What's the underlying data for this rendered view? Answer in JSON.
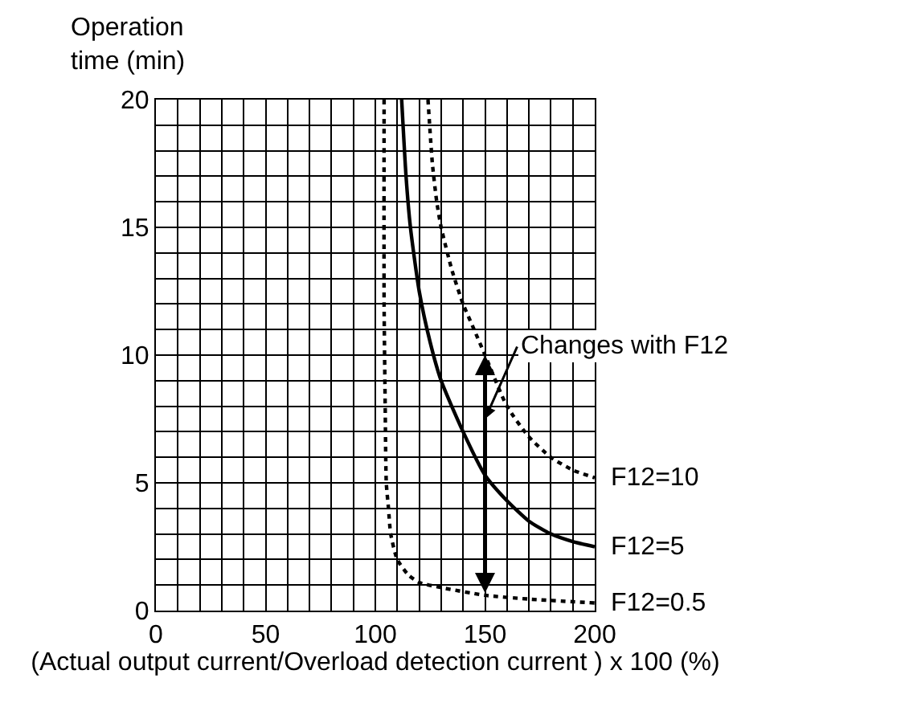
{
  "chart_data": {
    "type": "line",
    "xlabel": "(Actual output current/Overload detection current ) x 100 (%)",
    "ylabel": "Operation\ntime (min)",
    "series": [
      {
        "name": "F12=10",
        "color": "#000000",
        "line_style": "dotted",
        "x": [
          124,
          126,
          128,
          130,
          135,
          140,
          145,
          150,
          160,
          170,
          180,
          190,
          200
        ],
        "values": [
          20,
          17.5,
          16,
          15,
          13.3,
          12,
          11,
          10,
          8,
          6.8,
          6,
          5.5,
          5.2
        ]
      },
      {
        "name": "F12=5",
        "color": "#000000",
        "line_style": "solid",
        "x": [
          112,
          114,
          116,
          120,
          125,
          130,
          140,
          150,
          160,
          170,
          180,
          190,
          200
        ],
        "values": [
          20,
          17,
          15,
          12.5,
          10.5,
          9,
          7,
          5.3,
          4.3,
          3.5,
          3,
          2.7,
          2.5
        ]
      },
      {
        "name": "F12=0.5",
        "color": "#000000",
        "line_style": "dotted",
        "x": [
          104,
          104,
          104.5,
          105,
          106,
          107,
          110,
          115,
          120,
          130,
          150,
          170,
          200
        ],
        "values": [
          20,
          12,
          8,
          5,
          4,
          3,
          2,
          1.4,
          1.1,
          0.9,
          0.6,
          0.45,
          0.3
        ]
      }
    ],
    "annotations": [
      "Changes with F12"
    ],
    "xlim": [
      0,
      200
    ],
    "xticks": [
      0,
      {
        "value": 10,
        "label": null
      },
      {
        "value": 20,
        "label": null
      },
      {
        "value": 30,
        "label": null
      },
      {
        "value": 40,
        "label": null
      },
      50,
      {
        "value": 60,
        "label": null
      },
      {
        "value": 70,
        "label": null
      },
      {
        "value": 80,
        "label": null
      },
      {
        "value": 90,
        "label": null
      },
      100,
      {
        "value": 110,
        "label": null
      },
      {
        "value": 120,
        "label": null
      },
      {
        "value": 130,
        "label": null
      },
      {
        "value": 140,
        "label": null
      },
      150,
      {
        "value": 160,
        "label": null
      },
      {
        "value": 170,
        "label": null
      },
      {
        "value": 180,
        "label": null
      },
      {
        "value": 190,
        "label": null
      },
      200
    ],
    "ylim": [
      0,
      20
    ],
    "yticks": [
      0,
      {
        "value": 1,
        "label": null
      },
      {
        "value": 2,
        "label": null
      },
      {
        "value": 3,
        "label": null
      },
      {
        "value": 4,
        "label": null
      },
      5,
      {
        "value": 6,
        "label": null
      },
      {
        "value": 7,
        "label": null
      },
      {
        "value": 8,
        "label": null
      },
      {
        "value": 9,
        "label": null
      },
      10,
      {
        "value": 11,
        "label": null
      },
      {
        "value": 12,
        "label": null
      },
      {
        "value": 13,
        "label": null
      },
      {
        "value": 14,
        "label": null
      },
      15,
      {
        "value": 16,
        "label": null
      },
      {
        "value": 17,
        "label": null
      },
      {
        "value": 18,
        "label": null
      },
      {
        "value": 19,
        "label": null
      },
      20
    ],
    "grid": true,
    "legend": false,
    "marker": "none"
  }
}
